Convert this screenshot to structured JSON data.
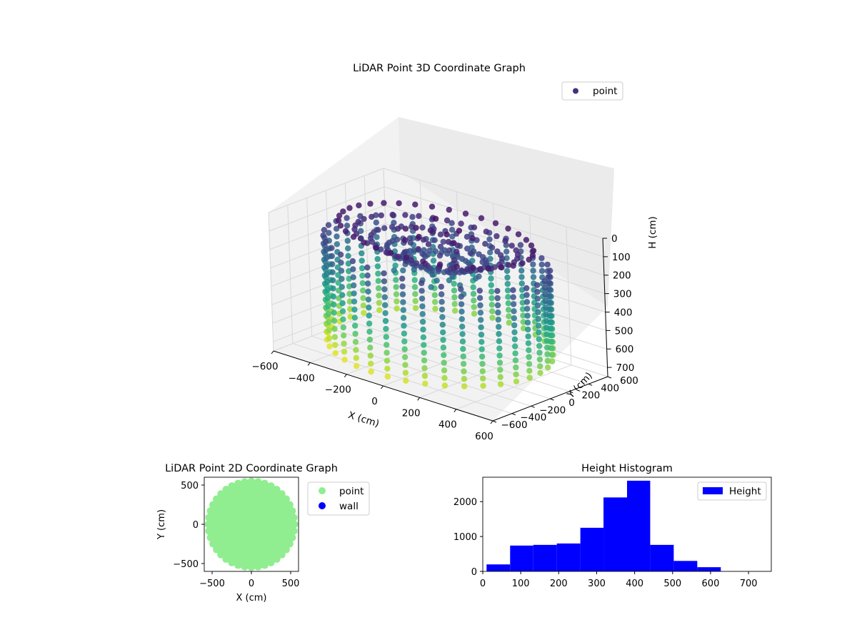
{
  "colors": {
    "point_2d": "#90ee90",
    "wall": "#0000ff",
    "hist": "#0000ff",
    "colormap": "viridis"
  },
  "chart_data": [
    {
      "type": "scatter",
      "projection": "3d",
      "title": "LiDAR Point 3D Coordinate Graph",
      "xlabel": "X (cm)",
      "ylabel": "Y (cm)",
      "zlabel": "H (cm)",
      "xlim": [
        -600,
        600
      ],
      "ylim": [
        -600,
        600
      ],
      "zlim": [
        750,
        0
      ],
      "zaxis_inverted": true,
      "xticks": [
        "−600",
        "−400",
        "−200",
        "0",
        "200",
        "400",
        "600"
      ],
      "yticks": [
        "−600",
        "−400",
        "−200",
        "0",
        "200",
        "400",
        "600"
      ],
      "zticks": [
        "0",
        "100",
        "200",
        "300",
        "400",
        "500",
        "600",
        "700"
      ],
      "legend": {
        "entries": [
          "point"
        ],
        "placement": "top-right"
      },
      "color_by": "height",
      "colormap": "viridis",
      "grid": true,
      "shape": "circular room point cloud, radius approx 550 cm",
      "radius": 550,
      "wall_height_range": [
        150,
        720
      ],
      "num_slices": 36,
      "points_per_slice": 14
    },
    {
      "type": "scatter",
      "title": "LiDAR Point 2D Coordinate Graph",
      "xlabel": "X (cm)",
      "ylabel": "Y (cm)",
      "xlim": [
        -600,
        600
      ],
      "ylim": [
        -600,
        600
      ],
      "xticks": [
        "−500",
        "0",
        "500"
      ],
      "yticks": [
        "500",
        "0",
        "−500"
      ],
      "legend": {
        "entries": [
          "point",
          "wall"
        ],
        "placement": "outside-right"
      },
      "series": [
        {
          "name": "point",
          "color": "#90ee90",
          "shape": "filled disc",
          "center": [
            0,
            0
          ],
          "radius": 570
        },
        {
          "name": "wall",
          "color": "#0000ff",
          "values": []
        }
      ]
    },
    {
      "type": "bar",
      "subtype": "histogram",
      "title": "Height Histogram",
      "xlim": [
        0,
        760
      ],
      "ylim": [
        0,
        2700
      ],
      "xticks": [
        "0",
        "100",
        "200",
        "300",
        "400",
        "500",
        "600",
        "700"
      ],
      "yticks": [
        "0",
        "1000",
        "2000"
      ],
      "legend": {
        "entries": [
          "Height"
        ],
        "placement": "top-right"
      },
      "bin_edges": [
        10,
        72,
        133,
        195,
        257,
        318,
        380,
        441,
        503,
        565,
        627,
        688,
        750
      ],
      "counts": [
        200,
        740,
        760,
        800,
        1250,
        2120,
        2600,
        760,
        300,
        120,
        0,
        0
      ],
      "series": [
        {
          "name": "Height"
        }
      ]
    }
  ]
}
